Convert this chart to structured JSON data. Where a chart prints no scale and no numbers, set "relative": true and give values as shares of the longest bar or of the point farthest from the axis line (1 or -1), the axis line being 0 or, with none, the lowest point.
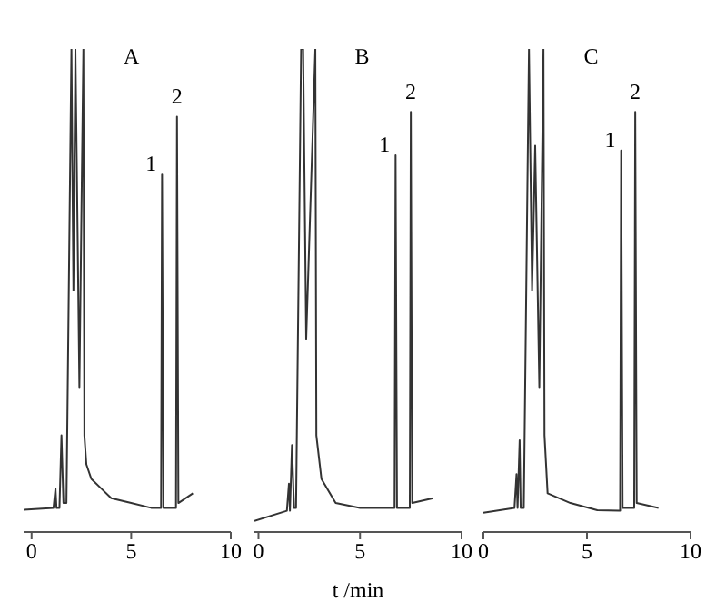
{
  "chart_data": [
    {
      "type": "line",
      "title": "A",
      "relative": true,
      "xlim": [
        -0.4,
        10
      ],
      "xticks": [
        0,
        5,
        10
      ],
      "marker": "none",
      "series": [
        {
          "color": "#333333",
          "x": [
            -0.4,
            1.1,
            1.2,
            1.25,
            1.4,
            1.5,
            1.6,
            1.75,
            2.0,
            2.1,
            2.2,
            2.4,
            2.6,
            2.65,
            2.75,
            3.0,
            3.5,
            4.0,
            5.0,
            6.0,
            6.5,
            6.55,
            6.62,
            7.25,
            7.3,
            7.37,
            8.1
          ],
          "values": [
            0.046,
            0.05,
            0.09,
            0.05,
            0.05,
            0.2,
            0.06,
            0.06,
            1.0,
            0.5,
            1.0,
            0.3,
            1.0,
            0.2,
            0.14,
            0.11,
            0.09,
            0.07,
            0.06,
            0.05,
            0.05,
            0.74,
            0.05,
            0.05,
            0.86,
            0.06,
            0.08
          ]
        }
      ],
      "annotations": [
        {
          "text": "1",
          "x": 6.55,
          "y": 0.74
        },
        {
          "text": "2",
          "x": 7.3,
          "y": 0.86
        }
      ]
    },
    {
      "type": "line",
      "title": "B",
      "relative": true,
      "xlim": [
        -0.2,
        10
      ],
      "xticks": [
        0,
        5,
        10
      ],
      "marker": "none",
      "xlabel": "t /min",
      "series": [
        {
          "color": "#333333",
          "x": [
            -0.2,
            1.4,
            1.5,
            1.55,
            1.65,
            1.75,
            1.85,
            2.1,
            2.2,
            2.35,
            2.5,
            2.8,
            2.85,
            3.1,
            3.8,
            5.0,
            6.5,
            6.7,
            6.75,
            6.82,
            7.45,
            7.5,
            7.57,
            8.6
          ],
          "values": [
            0.023,
            0.044,
            0.1,
            0.044,
            0.18,
            0.05,
            0.05,
            1.0,
            1.0,
            0.4,
            0.6,
            1.0,
            0.2,
            0.11,
            0.06,
            0.05,
            0.05,
            0.05,
            0.78,
            0.05,
            0.05,
            0.87,
            0.06,
            0.07
          ]
        }
      ],
      "annotations": [
        {
          "text": "1",
          "x": 6.75,
          "y": 0.78
        },
        {
          "text": "2",
          "x": 7.5,
          "y": 0.87
        }
      ]
    },
    {
      "type": "line",
      "title": "C",
      "relative": true,
      "xlim": [
        0,
        10
      ],
      "xticks": [
        0,
        5,
        10
      ],
      "marker": "none",
      "series": [
        {
          "color": "#333333",
          "x": [
            0,
            1.5,
            1.6,
            1.65,
            1.75,
            1.8,
            1.95,
            2.2,
            2.35,
            2.5,
            2.7,
            2.9,
            2.95,
            3.1,
            4.2,
            5.5,
            6.55,
            6.6,
            6.65,
            6.72,
            7.28,
            7.33,
            7.4,
            8.45
          ],
          "values": [
            0.04,
            0.05,
            0.12,
            0.05,
            0.19,
            0.05,
            0.05,
            1.0,
            0.5,
            0.8,
            0.3,
            1.0,
            0.2,
            0.08,
            0.06,
            0.045,
            0.044,
            0.044,
            0.79,
            0.05,
            0.05,
            0.87,
            0.06,
            0.05
          ]
        }
      ],
      "annotations": [
        {
          "text": "1",
          "x": 6.65,
          "y": 0.79
        },
        {
          "text": "2",
          "x": 7.33,
          "y": 0.87
        }
      ]
    }
  ]
}
